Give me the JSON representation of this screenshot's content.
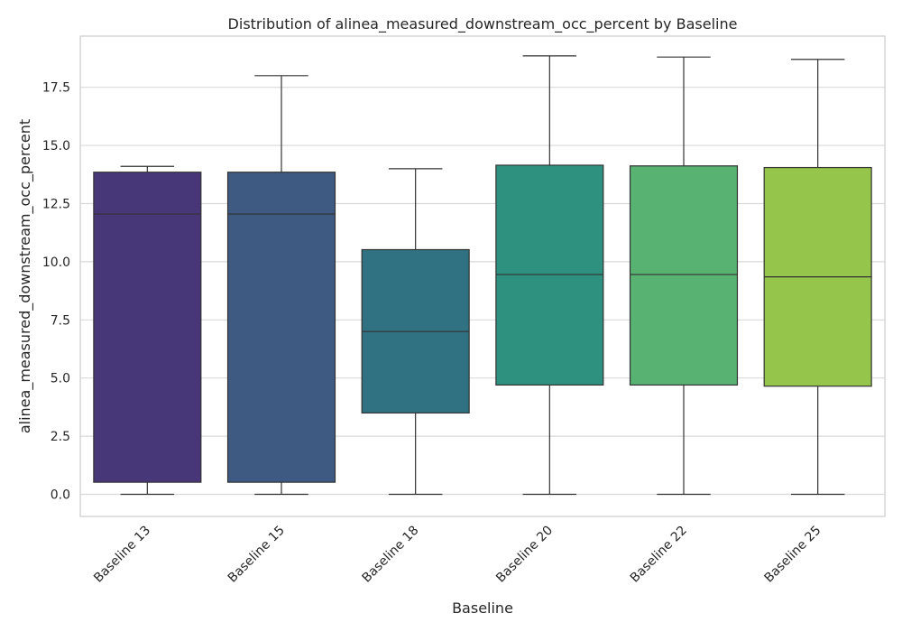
{
  "chart_data": {
    "type": "box",
    "title": "Distribution of alinea_measured_downstream_occ_percent by Baseline",
    "xlabel": "Baseline",
    "ylabel": "alinea_measured_downstream_occ_percent",
    "ylim": [
      -0.95,
      19.7
    ],
    "yticks": [
      0.0,
      2.5,
      5.0,
      7.5,
      10.0,
      12.5,
      15.0,
      17.5
    ],
    "ytick_labels": [
      "0.0",
      "2.5",
      "5.0",
      "7.5",
      "10.0",
      "12.5",
      "15.0",
      "17.5"
    ],
    "grid": true,
    "categories": [
      "Baseline 13",
      "Baseline 15",
      "Baseline 18",
      "Baseline 20",
      "Baseline 22",
      "Baseline 25"
    ],
    "boxes": [
      {
        "name": "Baseline 13",
        "whisker_low": 0.0,
        "q1": 0.52,
        "median": 12.05,
        "q3": 13.85,
        "whisker_high": 14.1,
        "color": "#483778"
      },
      {
        "name": "Baseline 15",
        "whisker_low": 0.0,
        "q1": 0.52,
        "median": 12.05,
        "q3": 13.85,
        "whisker_high": 18.0,
        "color": "#3e5a83"
      },
      {
        "name": "Baseline 18",
        "whisker_low": 0.0,
        "q1": 3.5,
        "median": 7.0,
        "q3": 10.52,
        "whisker_high": 14.0,
        "color": "#307281"
      },
      {
        "name": "Baseline 20",
        "whisker_low": 0.0,
        "q1": 4.7,
        "median": 9.45,
        "q3": 14.15,
        "whisker_high": 18.85,
        "color": "#2e9180"
      },
      {
        "name": "Baseline 22",
        "whisker_low": 0.0,
        "q1": 4.7,
        "median": 9.45,
        "q3": 14.12,
        "whisker_high": 18.8,
        "color": "#58b271"
      },
      {
        "name": "Baseline 25",
        "whisker_low": 0.0,
        "q1": 4.65,
        "median": 9.35,
        "q3": 14.05,
        "whisker_high": 18.7,
        "color": "#95c64b"
      }
    ]
  }
}
